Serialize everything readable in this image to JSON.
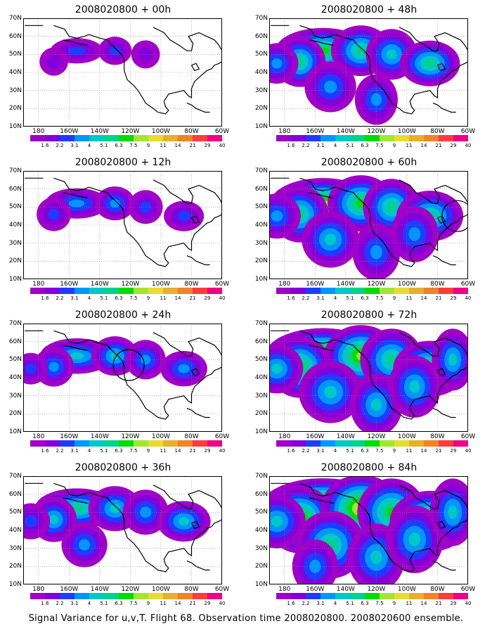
{
  "panels": [
    {
      "title": "2008020800 + 00h",
      "level": 0,
      "ellipse": false
    },
    {
      "title": "2008020800 + 48h",
      "level": 4,
      "ellipse": false
    },
    {
      "title": "2008020800 + 12h",
      "level": 1,
      "ellipse": false
    },
    {
      "title": "2008020800 + 60h",
      "level": 5,
      "ellipse": true
    },
    {
      "title": "2008020800 + 24h",
      "level": 2,
      "ellipse": true
    },
    {
      "title": "2008020800 + 72h",
      "level": 6,
      "ellipse": false
    },
    {
      "title": "2008020800 + 36h",
      "level": 3,
      "ellipse": false
    },
    {
      "title": "2008020800 + 84h",
      "level": 7,
      "ellipse": false
    }
  ],
  "lat_labels": [
    "70N",
    "60N",
    "50N",
    "40N",
    "30N",
    "20N",
    "10N"
  ],
  "lon_labels": [
    "180",
    "160W",
    "140W",
    "120W",
    "100W",
    "80W",
    "60W"
  ],
  "colorbar": {
    "labels": [
      "1.6",
      "2.2",
      "3.1",
      "4",
      "5.1",
      "6.3",
      "7.5",
      "9",
      "11",
      "14",
      "21",
      "29",
      "40"
    ],
    "colors": [
      "#a000c8",
      "#8200dc",
      "#1e3cff",
      "#0096ff",
      "#00c8c8",
      "#00d28c",
      "#00dc00",
      "#a0e632",
      "#e6dc32",
      "#e6af2d",
      "#f08228",
      "#fa3c3c",
      "#f00082"
    ]
  },
  "caption": "Signal Variance for u,v,T. Flight 68. Observation time 2008020800. 2008020600 ensemble."
}
